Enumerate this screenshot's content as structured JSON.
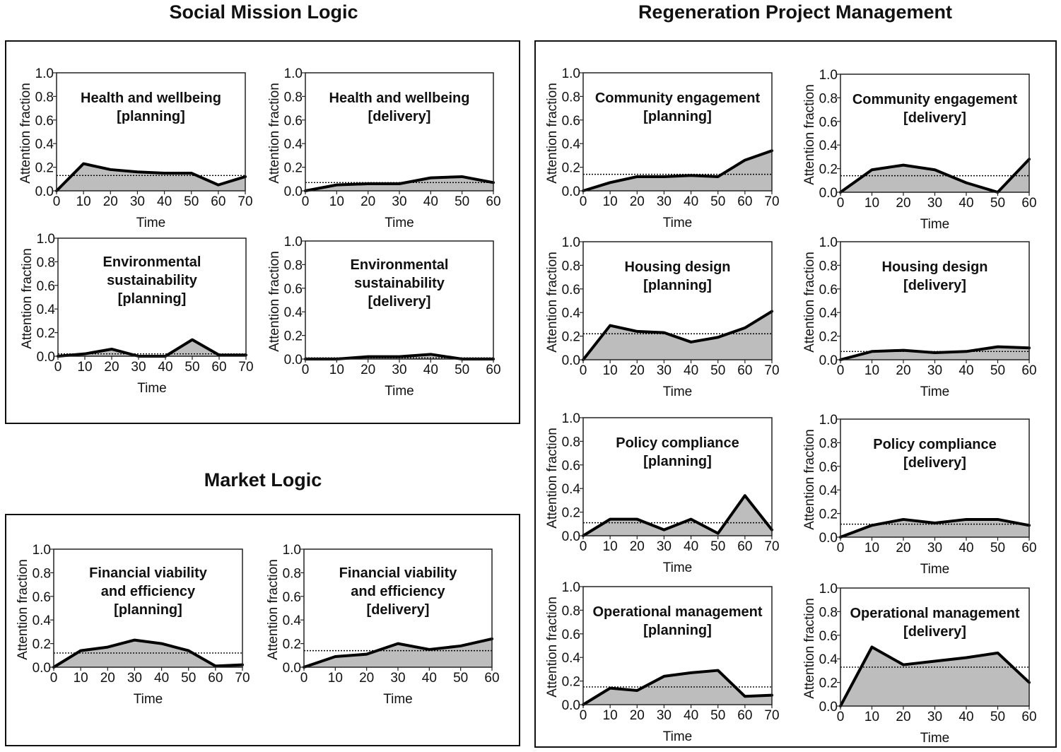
{
  "sections": {
    "social": {
      "title": "Social Mission Logic"
    },
    "market": {
      "title": "Market Logic"
    },
    "regen": {
      "title": "Regeneration Project Management"
    }
  },
  "axis_labels": {
    "x": "Time",
    "y": "Attention fraction"
  },
  "style": {
    "fill": "#bdbdbd",
    "line": "#000000",
    "baseline": "#000000"
  },
  "chart_data": [
    {
      "id": "hw-planning",
      "type": "area",
      "title": [
        "Health and wellbeing",
        "[planning]"
      ],
      "xlabel": "Time",
      "ylabel": "Attention fraction",
      "xlim": [
        0,
        70
      ],
      "ylim": [
        0,
        1
      ],
      "xticks": [
        0,
        10,
        20,
        30,
        40,
        50,
        60,
        70
      ],
      "yticks": [
        0,
        0.2,
        0.4,
        0.6,
        0.8,
        1.0
      ],
      "x": [
        0,
        10,
        12,
        20,
        30,
        40,
        50,
        60,
        70
      ],
      "y": [
        0,
        0.23,
        0.22,
        0.18,
        0.16,
        0.15,
        0.15,
        0.05,
        0.12
      ],
      "baseline": 0.13
    },
    {
      "id": "hw-delivery",
      "type": "area",
      "title": [
        "Health and wellbeing",
        "[delivery]"
      ],
      "xlabel": "Time",
      "ylabel": "Attention fraction",
      "xlim": [
        0,
        60
      ],
      "ylim": [
        0,
        1
      ],
      "xticks": [
        0,
        10,
        20,
        30,
        40,
        50,
        60
      ],
      "yticks": [
        0,
        0.2,
        0.4,
        0.6,
        0.8,
        1.0
      ],
      "x": [
        0,
        10,
        20,
        30,
        40,
        50,
        60
      ],
      "y": [
        0,
        0.05,
        0.06,
        0.06,
        0.11,
        0.12,
        0.07
      ],
      "baseline": 0.07
    },
    {
      "id": "es-planning",
      "type": "area",
      "title": [
        "Environmental",
        "sustainability",
        "[planning]"
      ],
      "xlabel": "Time",
      "ylabel": "Attention fraction",
      "xlim": [
        0,
        70
      ],
      "ylim": [
        0,
        1
      ],
      "xticks": [
        0,
        10,
        20,
        30,
        40,
        50,
        60,
        70
      ],
      "yticks": [
        0,
        0.2,
        0.4,
        0.6,
        0.8,
        1.0
      ],
      "x": [
        0,
        10,
        20,
        30,
        40,
        50,
        60,
        70
      ],
      "y": [
        0,
        0.02,
        0.06,
        0.0,
        0.0,
        0.14,
        0.01,
        0.01
      ],
      "baseline": 0.02
    },
    {
      "id": "es-delivery",
      "type": "area",
      "title": [
        "Environmental",
        "sustainability",
        "[delivery]"
      ],
      "xlabel": "Time",
      "ylabel": "Attention fraction",
      "xlim": [
        0,
        60
      ],
      "ylim": [
        0,
        1
      ],
      "xticks": [
        0,
        10,
        20,
        30,
        40,
        50,
        60
      ],
      "yticks": [
        0,
        0.2,
        0.4,
        0.6,
        0.8,
        1.0
      ],
      "x": [
        0,
        10,
        20,
        30,
        40,
        50,
        60
      ],
      "y": [
        0,
        0.0,
        0.02,
        0.02,
        0.04,
        0.0,
        0.0
      ],
      "baseline": 0.01
    },
    {
      "id": "fve-planning",
      "type": "area",
      "title": [
        "Financial viability",
        "and efficiency",
        "[planning]"
      ],
      "xlabel": "Time",
      "ylabel": "Attention fraction",
      "xlim": [
        0,
        70
      ],
      "ylim": [
        0,
        1
      ],
      "xticks": [
        0,
        10,
        20,
        30,
        40,
        50,
        60,
        70
      ],
      "yticks": [
        0,
        0.2,
        0.4,
        0.6,
        0.8,
        1.0
      ],
      "x": [
        0,
        10,
        20,
        30,
        40,
        50,
        60,
        70
      ],
      "y": [
        0,
        0.14,
        0.17,
        0.23,
        0.2,
        0.14,
        0.01,
        0.02
      ],
      "baseline": 0.12
    },
    {
      "id": "fve-delivery",
      "type": "area",
      "title": [
        "Financial viability",
        "and efficiency",
        "[delivery]"
      ],
      "xlabel": "Time",
      "ylabel": "Attention fraction",
      "xlim": [
        0,
        60
      ],
      "ylim": [
        0,
        1
      ],
      "xticks": [
        0,
        10,
        20,
        30,
        40,
        50,
        60
      ],
      "yticks": [
        0,
        0.2,
        0.4,
        0.6,
        0.8,
        1.0
      ],
      "x": [
        0,
        10,
        20,
        30,
        40,
        50,
        60
      ],
      "y": [
        0,
        0.09,
        0.11,
        0.2,
        0.15,
        0.18,
        0.24
      ],
      "baseline": 0.14
    },
    {
      "id": "ce-planning",
      "type": "area",
      "title": [
        "Community engagement",
        "[planning]"
      ],
      "xlabel": "Time",
      "ylabel": "Attention fraction",
      "xlim": [
        0,
        70
      ],
      "ylim": [
        0,
        1
      ],
      "xticks": [
        0,
        10,
        20,
        30,
        40,
        50,
        60,
        70
      ],
      "yticks": [
        0,
        0.2,
        0.4,
        0.6,
        0.8,
        1.0
      ],
      "x": [
        0,
        10,
        20,
        30,
        40,
        50,
        60,
        70
      ],
      "y": [
        0,
        0.07,
        0.12,
        0.12,
        0.13,
        0.12,
        0.26,
        0.34
      ],
      "baseline": 0.14
    },
    {
      "id": "ce-delivery",
      "type": "area",
      "title": [
        "Community engagement",
        "[delivery]"
      ],
      "xlabel": "Time",
      "ylabel": "Attention fraction",
      "xlim": [
        0,
        60
      ],
      "ylim": [
        0,
        1
      ],
      "xticks": [
        0,
        10,
        20,
        30,
        40,
        50,
        60
      ],
      "yticks": [
        0,
        0.2,
        0.4,
        0.6,
        0.8,
        1.0
      ],
      "x": [
        0,
        10,
        20,
        30,
        40,
        50,
        60
      ],
      "y": [
        0,
        0.19,
        0.23,
        0.19,
        0.08,
        0.0,
        0.28
      ],
      "baseline": 0.14
    },
    {
      "id": "hd-planning",
      "type": "area",
      "title": [
        "Housing design",
        "[planning]"
      ],
      "xlabel": "Time",
      "ylabel": "Attention fraction",
      "xlim": [
        0,
        70
      ],
      "ylim": [
        0,
        1
      ],
      "xticks": [
        0,
        10,
        20,
        30,
        40,
        50,
        60,
        70
      ],
      "yticks": [
        0,
        0.2,
        0.4,
        0.6,
        0.8,
        1.0
      ],
      "x": [
        0,
        10,
        20,
        30,
        40,
        50,
        60,
        70
      ],
      "y": [
        0,
        0.29,
        0.24,
        0.23,
        0.15,
        0.19,
        0.27,
        0.41
      ],
      "baseline": 0.22
    },
    {
      "id": "hd-delivery",
      "type": "area",
      "title": [
        "Housing design",
        "[delivery]"
      ],
      "xlabel": "Time",
      "ylabel": "Attention fraction",
      "xlim": [
        0,
        60
      ],
      "ylim": [
        0,
        1
      ],
      "xticks": [
        0,
        10,
        20,
        30,
        40,
        50,
        60
      ],
      "yticks": [
        0,
        0.2,
        0.4,
        0.6,
        0.8,
        1.0
      ],
      "x": [
        0,
        10,
        20,
        30,
        40,
        50,
        60
      ],
      "y": [
        0,
        0.07,
        0.08,
        0.06,
        0.07,
        0.11,
        0.1
      ],
      "baseline": 0.07
    },
    {
      "id": "pc-planning",
      "type": "area",
      "title": [
        "Policy compliance",
        "[planning]"
      ],
      "xlabel": "Time",
      "ylabel": "Attention fraction",
      "xlim": [
        0,
        70
      ],
      "ylim": [
        0,
        1
      ],
      "xticks": [
        0,
        10,
        20,
        30,
        40,
        50,
        60,
        70
      ],
      "yticks": [
        0,
        0.2,
        0.4,
        0.6,
        0.8,
        1.0
      ],
      "x": [
        0,
        10,
        20,
        30,
        40,
        50,
        60,
        70
      ],
      "y": [
        0,
        0.14,
        0.14,
        0.05,
        0.14,
        0.02,
        0.34,
        0.05
      ],
      "baseline": 0.11
    },
    {
      "id": "pc-delivery",
      "type": "area",
      "title": [
        "Policy compliance",
        "[delivery]"
      ],
      "xlabel": "Time",
      "ylabel": "Attention fraction",
      "xlim": [
        0,
        60
      ],
      "ylim": [
        0,
        1
      ],
      "xticks": [
        0,
        10,
        20,
        30,
        40,
        50,
        60
      ],
      "yticks": [
        0,
        0.2,
        0.4,
        0.6,
        0.8,
        1.0
      ],
      "x": [
        0,
        10,
        20,
        30,
        40,
        50,
        60
      ],
      "y": [
        0,
        0.1,
        0.15,
        0.12,
        0.15,
        0.15,
        0.1
      ],
      "baseline": 0.11
    },
    {
      "id": "om-planning",
      "type": "area",
      "title": [
        "Operational management",
        "[planning]"
      ],
      "xlabel": "Time",
      "ylabel": "Attention fraction",
      "xlim": [
        0,
        70
      ],
      "ylim": [
        0,
        1
      ],
      "xticks": [
        0,
        10,
        20,
        30,
        40,
        50,
        60,
        70
      ],
      "yticks": [
        0,
        0.2,
        0.4,
        0.6,
        0.8,
        1.0
      ],
      "x": [
        0,
        10,
        20,
        30,
        40,
        50,
        60,
        70
      ],
      "y": [
        0,
        0.14,
        0.12,
        0.24,
        0.27,
        0.29,
        0.07,
        0.08
      ],
      "baseline": 0.15
    },
    {
      "id": "om-delivery",
      "type": "area",
      "title": [
        "Operational management",
        "[delivery]"
      ],
      "xlabel": "Time",
      "ylabel": "Attention fraction",
      "xlim": [
        0,
        60
      ],
      "ylim": [
        0,
        1
      ],
      "xticks": [
        0,
        10,
        20,
        30,
        40,
        50,
        60
      ],
      "yticks": [
        0,
        0.2,
        0.4,
        0.6,
        0.8,
        1.0
      ],
      "x": [
        0,
        10,
        20,
        30,
        40,
        50,
        60
      ],
      "y": [
        0,
        0.5,
        0.35,
        0.38,
        0.41,
        0.45,
        0.2
      ],
      "baseline": 0.33
    }
  ]
}
